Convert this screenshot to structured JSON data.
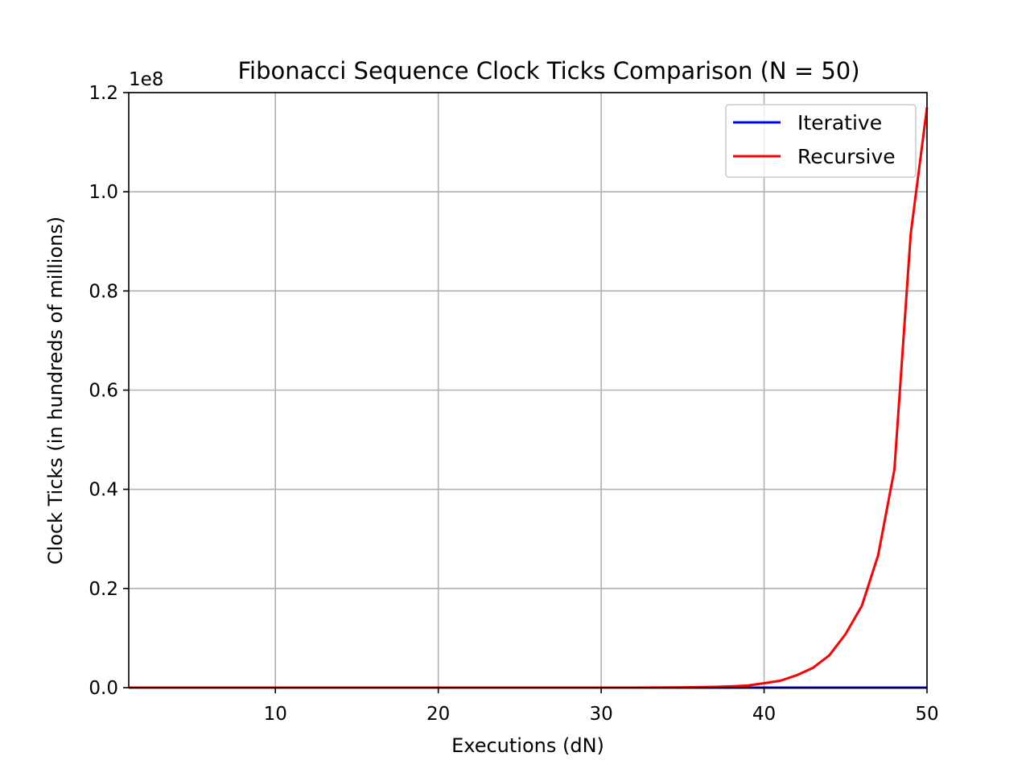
{
  "chart_data": {
    "type": "line",
    "title": "Fibonacci Sequence Clock Ticks Comparison (N = 50)",
    "xlabel": "Executions (dN)",
    "ylabel": "Clock Ticks (in hundreds of millions)",
    "y_offset_label": "1e8",
    "xlim": [
      1,
      50
    ],
    "ylim": [
      0,
      120000000
    ],
    "x_ticks": [
      10,
      20,
      30,
      40,
      50
    ],
    "x_tick_labels": [
      "10",
      "20",
      "30",
      "40",
      "50"
    ],
    "y_ticks": [
      0,
      20000000,
      40000000,
      60000000,
      80000000,
      100000000,
      120000000
    ],
    "y_tick_labels": [
      "0.0",
      "0.2",
      "0.4",
      "0.6",
      "0.8",
      "1.0",
      "1.2"
    ],
    "grid": true,
    "legend_position": "top-right",
    "x": [
      1,
      2,
      3,
      4,
      5,
      6,
      7,
      8,
      9,
      10,
      11,
      12,
      13,
      14,
      15,
      16,
      17,
      18,
      19,
      20,
      21,
      22,
      23,
      24,
      25,
      26,
      27,
      28,
      29,
      30,
      31,
      32,
      33,
      34,
      35,
      36,
      37,
      38,
      39,
      40,
      41,
      42,
      43,
      44,
      45,
      46,
      47,
      48,
      49,
      50
    ],
    "series": [
      {
        "name": "Iterative",
        "color": "#0000ff",
        "values": [
          0,
          0,
          0,
          0,
          0,
          0,
          0,
          0,
          0,
          0,
          0,
          0,
          0,
          0,
          0,
          0,
          0,
          0,
          0,
          0,
          0,
          0,
          0,
          0,
          0,
          0,
          0,
          0,
          0,
          0,
          0,
          0,
          0,
          0,
          0,
          0,
          0,
          0,
          0,
          0,
          0,
          0,
          0,
          0,
          0,
          0,
          0,
          0,
          0,
          0
        ]
      },
      {
        "name": "Recursive",
        "color": "#ff0000",
        "values": [
          0,
          0,
          0,
          0,
          0,
          0,
          0,
          0,
          0,
          0,
          0,
          0,
          0,
          0,
          0,
          0,
          0,
          0,
          0,
          0,
          0,
          0,
          0,
          0,
          0,
          0,
          0,
          0,
          0,
          0,
          0,
          0,
          20000,
          40000,
          60000,
          100000,
          160000,
          260000,
          420000,
          900000,
          1400000,
          2500000,
          4000000,
          6500000,
          10800000,
          16500000,
          26700000,
          44000000,
          91500000,
          117000000
        ]
      }
    ]
  }
}
